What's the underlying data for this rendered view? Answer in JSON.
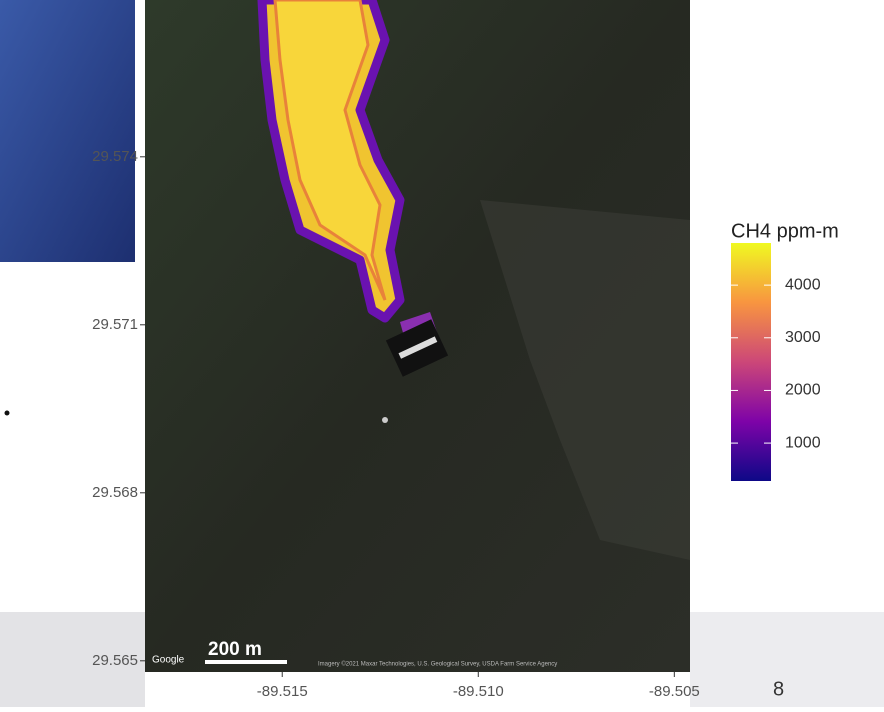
{
  "chart_data": {
    "type": "map",
    "xlim": [
      -89.5185,
      -89.5046
    ],
    "ylim": [
      29.5648,
      29.5768
    ],
    "xticks": [
      -89.515,
      {
        "value": -89.51,
        "label": "-89.510"
      },
      -89.505
    ],
    "yticks": [
      29.565,
      29.568,
      29.571,
      29.574
    ],
    "legend": {
      "title": "CH4 ppm-m",
      "limits": [
        280,
        4800
      ],
      "ticks": [
        1000,
        2000,
        3000,
        4000
      ],
      "colors": [
        "#0d0887",
        "#7e03a8",
        "#cc4778",
        "#f89540",
        "#f0f921"
      ]
    },
    "scale_bar": "200 m",
    "provider": "Google",
    "attribution": "Imagery ©2021 Maxar Technologies, U.S. Geological Survey, USDA Farm Service Agency",
    "page_number": "8"
  }
}
